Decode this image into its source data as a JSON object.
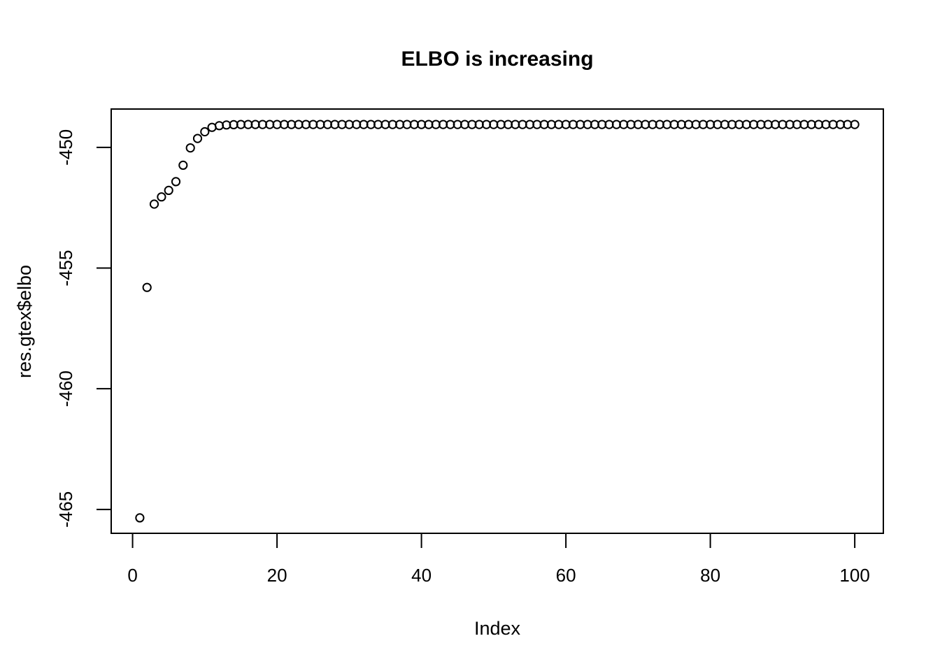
{
  "chart_data": {
    "type": "scatter",
    "title": "ELBO is increasing",
    "xlabel": "Index",
    "ylabel": "res.gtex$elbo",
    "marker": "open-circle",
    "grid": false,
    "legend": null,
    "point_color": "#000000",
    "background_color": "#FFFFFF",
    "xlim": [
      -2.96,
      103.96
    ],
    "ylim": [
      -465.99,
      -448.41
    ],
    "xticks": [
      0,
      20,
      40,
      60,
      80,
      100
    ],
    "yticks": [
      -450,
      -455,
      -460,
      -465
    ],
    "x": [
      1,
      2,
      3,
      4,
      5,
      6,
      7,
      8,
      9,
      10,
      11,
      12,
      13,
      14,
      15,
      16,
      17,
      18,
      19,
      20,
      21,
      22,
      23,
      24,
      25,
      26,
      27,
      28,
      29,
      30,
      31,
      32,
      33,
      34,
      35,
      36,
      37,
      38,
      39,
      40,
      41,
      42,
      43,
      44,
      45,
      46,
      47,
      48,
      49,
      50,
      51,
      52,
      53,
      54,
      55,
      56,
      57,
      58,
      59,
      60,
      61,
      62,
      63,
      64,
      65,
      66,
      67,
      68,
      69,
      70,
      71,
      72,
      73,
      74,
      75,
      76,
      77,
      78,
      79,
      80,
      81,
      82,
      83,
      84,
      85,
      86,
      87,
      88,
      89,
      90,
      91,
      92,
      93,
      94,
      95,
      96,
      97,
      98,
      99,
      100
    ],
    "y": [
      -465.35,
      -455.8,
      -452.35,
      -452.05,
      -451.78,
      -451.42,
      -450.74,
      -450.02,
      -449.63,
      -449.35,
      -449.17,
      -449.1,
      -449.07,
      -449.06,
      -449.05,
      -449.05,
      -449.05,
      -449.05,
      -449.05,
      -449.05,
      -449.05,
      -449.05,
      -449.05,
      -449.05,
      -449.05,
      -449.05,
      -449.05,
      -449.05,
      -449.05,
      -449.05,
      -449.05,
      -449.05,
      -449.05,
      -449.05,
      -449.05,
      -449.05,
      -449.05,
      -449.05,
      -449.05,
      -449.05,
      -449.05,
      -449.05,
      -449.05,
      -449.05,
      -449.05,
      -449.05,
      -449.05,
      -449.05,
      -449.05,
      -449.05,
      -449.05,
      -449.05,
      -449.05,
      -449.05,
      -449.05,
      -449.05,
      -449.05,
      -449.05,
      -449.05,
      -449.05,
      -449.05,
      -449.05,
      -449.05,
      -449.05,
      -449.05,
      -449.05,
      -449.05,
      -449.05,
      -449.05,
      -449.05,
      -449.05,
      -449.05,
      -449.05,
      -449.05,
      -449.05,
      -449.05,
      -449.05,
      -449.05,
      -449.05,
      -449.05,
      -449.05,
      -449.05,
      -449.05,
      -449.05,
      -449.05,
      -449.05,
      -449.05,
      -449.05,
      -449.05,
      -449.05,
      -449.05,
      -449.05,
      -449.05,
      -449.05,
      -449.05,
      -449.05,
      -449.05,
      -449.05,
      -449.05,
      -449.05
    ]
  }
}
